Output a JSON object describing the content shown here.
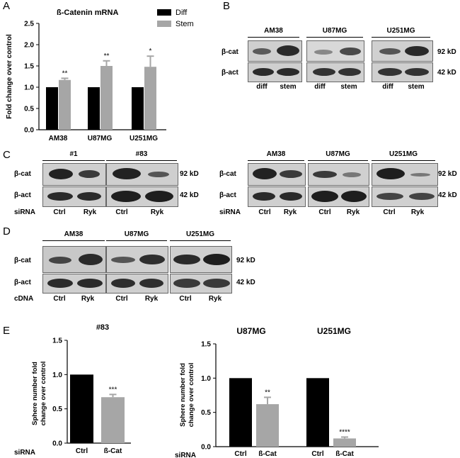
{
  "panel_letters": {
    "a": "A",
    "b": "B",
    "c": "C",
    "d": "D",
    "e": "E"
  },
  "labels": {
    "beta_cat": "β-cat",
    "beta_act": "β-act",
    "kd92": "92 kD",
    "kd42": "42 kD",
    "sirna": "siRNA",
    "cdna": "cDNA",
    "diff": "diff",
    "stem": "stem",
    "ctrl": "Ctrl",
    "ryk": "Ryk",
    "bcat_lane": "ß-Cat"
  },
  "blot_b": {
    "groups": [
      "AM38",
      "U87MG",
      "U251MG"
    ]
  },
  "blot_c1": {
    "groups": [
      "#1",
      "#83"
    ]
  },
  "blot_c2": {
    "groups": [
      "AM38",
      "U87MG",
      "U251MG"
    ]
  },
  "blot_d": {
    "groups": [
      "AM38",
      "U87MG",
      "U251MG"
    ]
  },
  "colors": {
    "black_bar": "#000000",
    "grey_bar": "#a6a6a6",
    "band": "#2a2a2a",
    "blot_bg": "#cfcfcf"
  },
  "chart_data": [
    {
      "type": "bar",
      "title": "ß-Catenin mRNA",
      "ylabel": "Fold change over control",
      "ylim": [
        0,
        2.5
      ],
      "yticks": [
        "0.0",
        "0.5",
        "1.0",
        "1.5",
        "2.0",
        "2.5"
      ],
      "categories": [
        "AM38",
        "U87MG",
        "U251MG"
      ],
      "series": [
        {
          "name": "Diff",
          "values": [
            1.0,
            1.0,
            1.0
          ],
          "errors": [
            0,
            0,
            0
          ]
        },
        {
          "name": "Stem",
          "values": [
            1.17,
            1.5,
            1.48
          ],
          "errors": [
            0.04,
            0.12,
            0.25
          ]
        }
      ],
      "annotations": [
        "**",
        "**",
        "*"
      ],
      "legend": "top-right"
    },
    {
      "type": "bar",
      "title": "#83",
      "ylabel": "Sphere number fold change over control",
      "ylim": [
        0,
        1.5
      ],
      "yticks": [
        "0.0",
        "0.5",
        "1.0",
        "1.5"
      ],
      "xprefix": "siRNA",
      "categories": [
        "Ctrl",
        "ß-Cat"
      ],
      "values": [
        1.0,
        0.67
      ],
      "errors": [
        0,
        0.04
      ],
      "annotations": [
        "",
        "***"
      ]
    },
    {
      "type": "bar",
      "titles": [
        "U87MG",
        "U251MG"
      ],
      "ylabel": "Sphere number fold change over control",
      "ylim": [
        0,
        1.5
      ],
      "yticks": [
        "0.0",
        "0.5",
        "1.0",
        "1.5"
      ],
      "xprefix": "siRNA",
      "categories": [
        "Ctrl",
        "ß-Cat",
        "Ctrl",
        "ß-Cat"
      ],
      "values": [
        1.0,
        0.62,
        1.0,
        0.12
      ],
      "errors": [
        0,
        0.1,
        0,
        0.02
      ],
      "annotations": [
        "",
        "**",
        "",
        "****"
      ]
    }
  ]
}
